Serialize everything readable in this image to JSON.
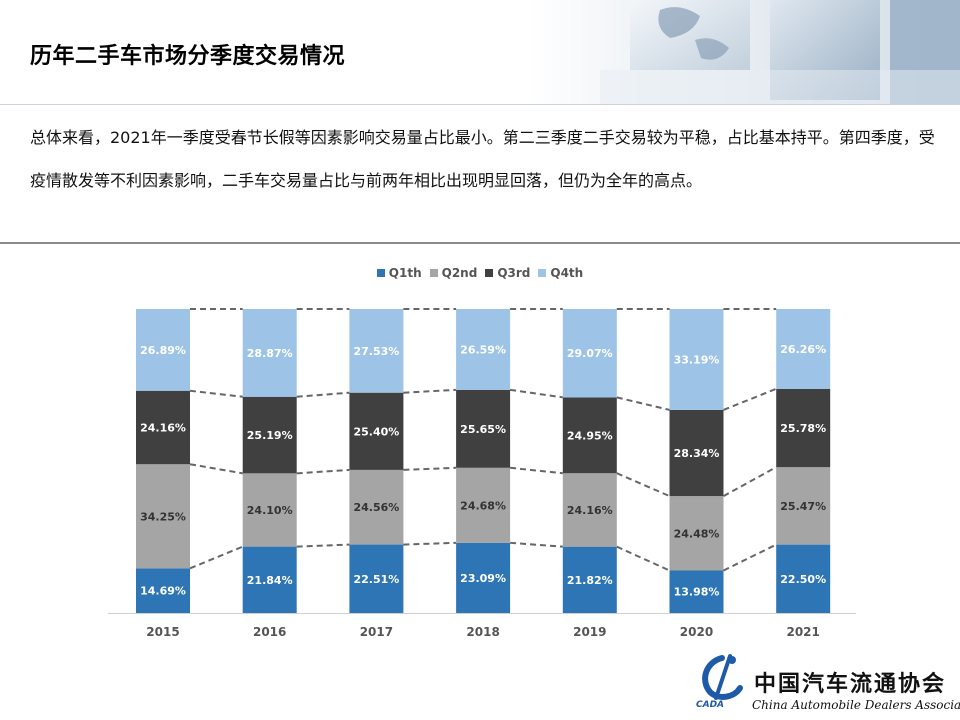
{
  "title": "历年二手车市场分季度交易情况",
  "summary": "总体来看，2021年一季度受春节长假等因素影响交易量占比最小。第二三季度二手交易较为平稳，占比基本持平。第四季度，受疫情散发等不利因素影响，二手车交易量占比与前两年相比出现明显回落，但仍为全年的高点。",
  "logo": {
    "cn": "中国汽车流通协会",
    "en": "China Automobile Dealers Association",
    "acronym": "CADA"
  },
  "chart_data": {
    "type": "bar",
    "stacked": true,
    "percent_stacked": true,
    "categories": [
      "2015",
      "2016",
      "2017",
      "2018",
      "2019",
      "2020",
      "2021"
    ],
    "series": [
      {
        "name": "Q1th",
        "color": "#2e75b6",
        "values": [
          "14.69%",
          "21.84%",
          "22.51%",
          "23.09%",
          "21.82%",
          "13.98%",
          "22.50%"
        ]
      },
      {
        "name": "Q2nd",
        "color": "#a5a5a5",
        "values": [
          "34.25%",
          "24.10%",
          "24.56%",
          "24.68%",
          "24.16%",
          "24.48%",
          "25.47%"
        ]
      },
      {
        "name": "Q3rd",
        "color": "#404040",
        "values": [
          "24.16%",
          "25.19%",
          "25.40%",
          "25.65%",
          "24.95%",
          "28.34%",
          "25.78%"
        ]
      },
      {
        "name": "Q4th",
        "color": "#9dc3e6",
        "values": [
          "26.89%",
          "28.87%",
          "27.53%",
          "26.59%",
          "29.07%",
          "33.19%",
          "26.26%"
        ]
      }
    ],
    "legend_position": "top",
    "series_lines": "dashed connectors between stacks",
    "grid": false
  }
}
